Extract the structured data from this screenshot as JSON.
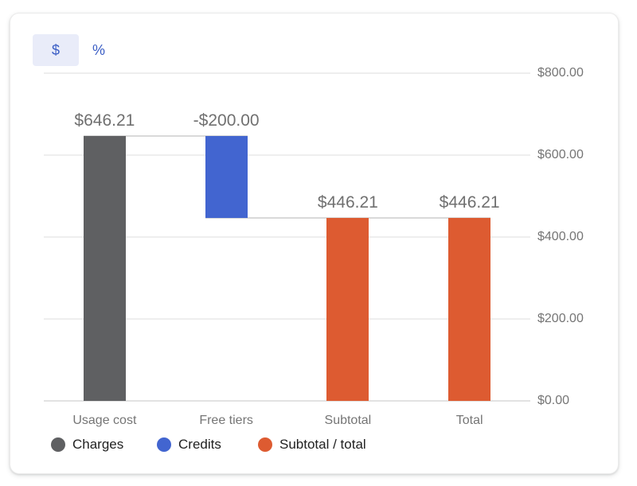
{
  "toggle": {
    "dollar_label": "$",
    "percent_label": "%",
    "active": "dollar"
  },
  "colors": {
    "accent_blue": "#3b5ec5",
    "toggle_active_bg": "#e9ecf9",
    "charges": "#5f6062",
    "credits": "#4265d0",
    "subtotal_total": "#dd5b31"
  },
  "chart_data": {
    "type": "bar",
    "subtype": "waterfall",
    "categories": [
      "Usage cost",
      "Free tiers",
      "Subtotal",
      "Total"
    ],
    "bars": [
      {
        "category": "Usage cost",
        "value_label": "$646.21",
        "start": 0,
        "end": 646.21,
        "series": "Charges"
      },
      {
        "category": "Free tiers",
        "value_label": "-$200.00",
        "start": 646.21,
        "end": 446.21,
        "series": "Credits"
      },
      {
        "category": "Subtotal",
        "value_label": "$446.21",
        "start": 0,
        "end": 446.21,
        "series": "Subtotal / total"
      },
      {
        "category": "Total",
        "value_label": "$446.21",
        "start": 0,
        "end": 446.21,
        "series": "Subtotal / total"
      }
    ],
    "connectors": [
      {
        "level": 646.21,
        "from_bar": 0,
        "to_bar": 1
      },
      {
        "level": 446.21,
        "from_bar": 1,
        "to_bar": 3
      }
    ],
    "y_axis": {
      "side": "right",
      "min": 0,
      "max": 800,
      "tick_values": [
        0,
        200,
        400,
        600,
        800
      ],
      "tick_labels": [
        "$0.00",
        "$200.00",
        "$400.00",
        "$600.00",
        "$800.00"
      ]
    },
    "grid": true,
    "legend_position": "bottom",
    "legend": [
      {
        "label": "Charges",
        "series": "Charges",
        "color": "#5f6062"
      },
      {
        "label": "Credits",
        "series": "Credits",
        "color": "#4265d0"
      },
      {
        "label": "Subtotal / total",
        "series": "Subtotal / total",
        "color": "#dd5b31"
      }
    ]
  }
}
